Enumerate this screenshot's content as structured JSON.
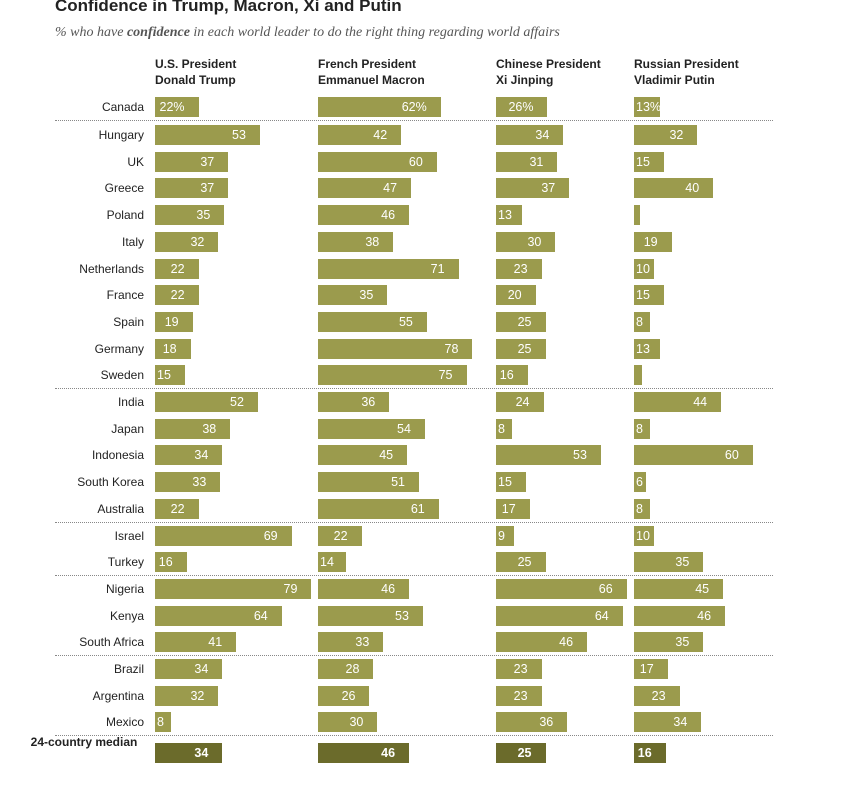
{
  "chart_data": {
    "type": "bar",
    "title": "Confidence in Trump, Macron, Xi and Putin",
    "subtitle_parts": [
      "% who have ",
      "confidence",
      " in each world leader to do the right thing regarding world affairs"
    ],
    "categories": [
      "Canada",
      "Hungary",
      "UK",
      "Greece",
      "Poland",
      "Italy",
      "Netherlands",
      "France",
      "Spain",
      "Germany",
      "Sweden",
      "India",
      "Japan",
      "Indonesia",
      "South Korea",
      "Australia",
      "Israel",
      "Turkey",
      "Nigeria",
      "Kenya",
      "South Africa",
      "Brazil",
      "Argentina",
      "Mexico"
    ],
    "median_label": "24-country median",
    "median_color": "#6b6b2b",
    "series": [
      {
        "name": "U.S. President Donald Trump",
        "color": "#9b9b4d",
        "values": [
          22,
          53,
          37,
          37,
          35,
          32,
          22,
          22,
          19,
          18,
          15,
          52,
          38,
          34,
          33,
          22,
          69,
          16,
          79,
          64,
          41,
          34,
          32,
          8
        ],
        "value_labels": [
          "22%",
          null,
          null,
          null,
          null,
          null,
          null,
          null,
          null,
          null,
          null,
          null,
          null,
          null,
          null,
          null,
          null,
          null,
          null,
          null,
          null,
          null,
          null,
          null
        ],
        "median": 34
      },
      {
        "name": "French President Emmanuel Macron",
        "color": "#9b9b4d",
        "values": [
          62,
          42,
          60,
          47,
          46,
          38,
          71,
          35,
          55,
          78,
          75,
          36,
          54,
          45,
          51,
          61,
          22,
          14,
          46,
          53,
          33,
          28,
          26,
          30
        ],
        "value_labels": [
          "62%",
          null,
          null,
          null,
          null,
          null,
          null,
          null,
          null,
          null,
          null,
          null,
          null,
          null,
          null,
          null,
          null,
          null,
          null,
          null,
          null,
          null,
          null,
          null
        ],
        "median": 46
      },
      {
        "name": "Chinese President Xi Jinping",
        "color": "#9b9b4d",
        "values": [
          26,
          34,
          31,
          37,
          13,
          30,
          23,
          20,
          25,
          25,
          16,
          24,
          8,
          53,
          15,
          17,
          9,
          25,
          66,
          64,
          46,
          23,
          23,
          36
        ],
        "value_labels": [
          "26%",
          null,
          null,
          null,
          null,
          null,
          null,
          null,
          null,
          null,
          null,
          null,
          null,
          null,
          null,
          null,
          null,
          null,
          null,
          null,
          null,
          null,
          null,
          null
        ],
        "median": 25
      },
      {
        "name": "Russian President Vladimir Putin",
        "color": "#9b9b4d",
        "values": [
          13,
          32,
          15,
          40,
          3,
          19,
          10,
          15,
          8,
          13,
          4,
          44,
          8,
          60,
          6,
          8,
          10,
          35,
          45,
          46,
          35,
          17,
          23,
          34
        ],
        "value_labels": [
          "13%",
          null,
          null,
          null,
          null,
          null,
          null,
          null,
          null,
          null,
          null,
          null,
          null,
          null,
          null,
          null,
          null,
          null,
          null,
          null,
          null,
          null,
          null,
          null
        ],
        "median": 16
      }
    ]
  }
}
